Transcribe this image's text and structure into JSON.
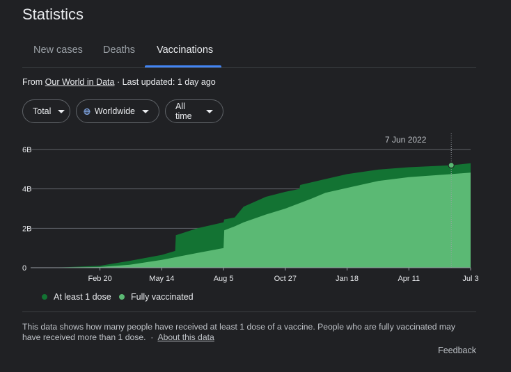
{
  "header": {
    "title": "Statistics"
  },
  "tabs": [
    {
      "label": "New cases"
    },
    {
      "label": "Deaths"
    },
    {
      "label": "Vaccinations"
    }
  ],
  "source": {
    "prefix": "From",
    "link": "Our World in Data",
    "updated": "· Last updated: 1 day ago"
  },
  "filters": {
    "measure": "Total",
    "region": "Worldwide",
    "period": "All time"
  },
  "tooltip": {
    "date": "7 Jun 2022"
  },
  "legend": {
    "series1": "At least 1 dose",
    "series2": "Fully vaccinated"
  },
  "note": {
    "text": "This data shows how many people have received at least 1 dose of a vaccine. People who are fully vaccinated may have received more than 1 dose.",
    "separator": "·",
    "link": "About this data"
  },
  "footer": {
    "feedback": "Feedback"
  },
  "colors": {
    "at_least_one": "#137333",
    "fully_vaccinated": "#5bb974",
    "gridline": "#5f6368",
    "axis_text": "#e8eaed"
  },
  "chart_data": {
    "type": "area",
    "x_ticks": [
      "Feb 20",
      "May 14",
      "Aug 5",
      "Oct 27",
      "Jan 18",
      "Apr 11",
      "Jul 3"
    ],
    "y_ticks": [
      "0",
      "2B",
      "4B",
      "6B"
    ],
    "ylim": [
      0,
      6000000000
    ],
    "series": [
      {
        "name": "At least 1 dose",
        "color": "#137333",
        "points": [
          [
            "2020-12-01",
            0
          ],
          [
            "2021-01-01",
            20000000
          ],
          [
            "2021-02-20",
            100000000
          ],
          [
            "2021-04-01",
            350000000
          ],
          [
            "2021-05-14",
            650000000
          ],
          [
            "2021-06-01",
            850000000
          ],
          [
            "2021-06-02",
            1650000000
          ],
          [
            "2021-07-01",
            2000000000
          ],
          [
            "2021-08-05",
            2300000000
          ],
          [
            "2021-08-06",
            2450000000
          ],
          [
            "2021-08-20",
            2550000000
          ],
          [
            "2021-09-01",
            3100000000
          ],
          [
            "2021-10-01",
            3600000000
          ],
          [
            "2021-10-27",
            3850000000
          ],
          [
            "2021-11-15",
            4000000000
          ],
          [
            "2021-11-16",
            4200000000
          ],
          [
            "2021-12-20",
            4500000000
          ],
          [
            "2022-01-18",
            4750000000
          ],
          [
            "2022-03-01",
            4980000000
          ],
          [
            "2022-04-11",
            5100000000
          ],
          [
            "2022-06-07",
            5200000000
          ],
          [
            "2022-07-03",
            5300000000
          ]
        ]
      },
      {
        "name": "Fully vaccinated",
        "color": "#5bb974",
        "points": [
          [
            "2020-12-01",
            0
          ],
          [
            "2021-02-20",
            40000000
          ],
          [
            "2021-04-01",
            150000000
          ],
          [
            "2021-05-14",
            400000000
          ],
          [
            "2021-07-01",
            750000000
          ],
          [
            "2021-08-05",
            1000000000
          ],
          [
            "2021-08-06",
            1900000000
          ],
          [
            "2021-08-20",
            2100000000
          ],
          [
            "2021-09-01",
            2300000000
          ],
          [
            "2021-10-01",
            2700000000
          ],
          [
            "2021-10-27",
            3000000000
          ],
          [
            "2021-12-01",
            3500000000
          ],
          [
            "2021-12-20",
            3800000000
          ],
          [
            "2022-01-18",
            4050000000
          ],
          [
            "2022-03-01",
            4400000000
          ],
          [
            "2022-04-11",
            4600000000
          ],
          [
            "2022-06-07",
            4750000000
          ],
          [
            "2022-07-03",
            4830000000
          ]
        ]
      }
    ],
    "highlight": {
      "date": "2022-06-07",
      "value": 5200000000
    }
  }
}
